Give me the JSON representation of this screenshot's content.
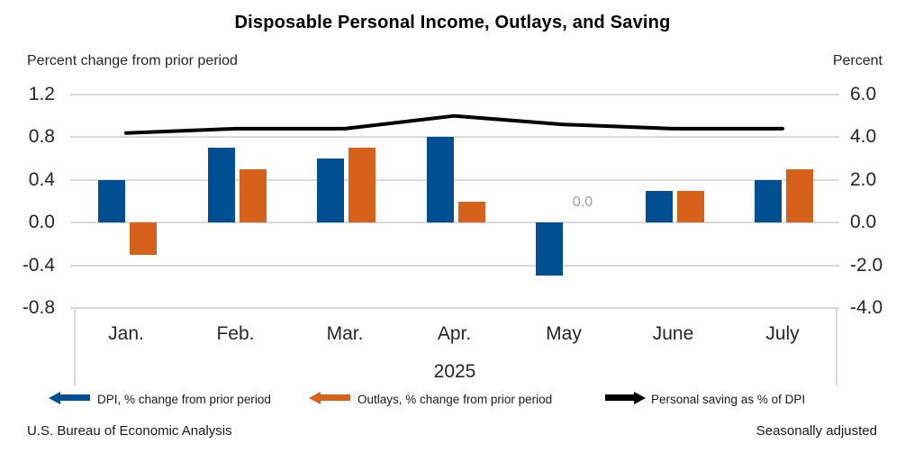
{
  "title": "Disposable Personal Income, Outlays, and Saving",
  "left_axis": {
    "title": "Percent change from prior period",
    "ticks": [
      "1.2",
      "0.8",
      "0.4",
      "0.0",
      "-0.4",
      "-0.8"
    ]
  },
  "right_axis": {
    "title": "Percent",
    "ticks": [
      "6.0",
      "4.0",
      "2.0",
      "0.0",
      "-2.0",
      "-4.0"
    ]
  },
  "x_axis": {
    "months": [
      "Jan.",
      "Feb.",
      "Mar.",
      "Apr.",
      "May",
      "June",
      "July"
    ],
    "year": "2025"
  },
  "chart_data": {
    "type": "combo",
    "categories": [
      "Jan.",
      "Feb.",
      "Mar.",
      "Apr.",
      "May",
      "June",
      "July"
    ],
    "year": "2025",
    "series": [
      {
        "name": "DPI, % change from prior period",
        "type": "bar",
        "axis": "left",
        "values": [
          0.4,
          0.7,
          0.6,
          0.8,
          -0.5,
          0.3,
          0.4
        ]
      },
      {
        "name": "Outlays, % change from prior period",
        "type": "bar",
        "axis": "left",
        "values": [
          -0.3,
          0.5,
          0.7,
          0.2,
          0.0,
          0.3,
          0.5
        ]
      },
      {
        "name": "Personal saving as % of DPI",
        "type": "line",
        "axis": "right",
        "values": [
          4.2,
          4.4,
          4.4,
          5.0,
          4.6,
          4.4,
          4.4
        ]
      }
    ],
    "left_ylim": [
      -0.8,
      1.2
    ],
    "right_ylim": [
      -4.0,
      6.0
    ],
    "grid": true,
    "legend_position": "bottom",
    "zero_value_label": "0.0",
    "zero_value_series": 1,
    "zero_value_category": 4
  },
  "legend": {
    "dpi_label": "DPI, % change from prior period",
    "outlays_label": "Outlays, % change from prior period",
    "saving_label": "Personal saving as % of DPI"
  },
  "footer": {
    "left": "U.S. Bureau of Economic Analysis",
    "right": "Seasonally adjusted"
  },
  "colors": {
    "dpi_bar": "#004f93",
    "outlays_bar": "#d6611a",
    "saving_line": "#000000",
    "gridline": "#d9d9d9",
    "tick_text": "#262626",
    "zero_label_text": "#9e9e9e"
  }
}
